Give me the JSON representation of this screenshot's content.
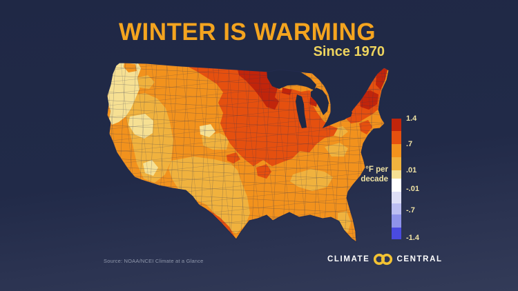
{
  "title": "WINTER IS WARMING",
  "subtitle": "Since 1970",
  "source_text": "Source: NOAA/NCEI Climate at a Glance",
  "logo": {
    "word_left": "CLIMATE",
    "word_right": "CENTRAL",
    "icon": "interlocking-rings-icon",
    "ring_color": "#f2c233"
  },
  "legend": {
    "unit_line1": "°F per",
    "unit_line2": "decade",
    "ticks": [
      {
        "label": "1.4",
        "pos_pct": 0
      },
      {
        "label": ".7",
        "pos_pct": 21
      },
      {
        "label": ".01",
        "pos_pct": 43
      },
      {
        "label": "-.01",
        "pos_pct": 58
      },
      {
        "label": "-.7",
        "pos_pct": 76
      },
      {
        "label": "-1.4",
        "pos_pct": 99
      }
    ],
    "bands": [
      {
        "name": "dark-red",
        "color": "#c1250b",
        "height_pct": 10.5
      },
      {
        "name": "red-orange",
        "color": "#e5500f",
        "height_pct": 10.5
      },
      {
        "name": "orange",
        "color": "#f2921d",
        "height_pct": 11
      },
      {
        "name": "gold",
        "color": "#f0b23e",
        "height_pct": 11
      },
      {
        "name": "pale-yellow",
        "color": "#f6e093",
        "height_pct": 6.5
      },
      {
        "name": "white",
        "color": "#ffffff",
        "height_pct": 11
      },
      {
        "name": "palest-blue",
        "color": "#dedff7",
        "height_pct": 9.5
      },
      {
        "name": "light-blue",
        "color": "#bcbef2",
        "height_pct": 9.5
      },
      {
        "name": "medium-blue",
        "color": "#8f93ea",
        "height_pct": 10.5
      },
      {
        "name": "blue",
        "color": "#4a4be0",
        "height_pct": 10
      }
    ]
  },
  "map_colors": {
    "darkred": "#c1250b",
    "red": "#e5500f",
    "orange": "#f2921d",
    "gold": "#f0b23e",
    "cream": "#f6e093",
    "water": "#1f2845",
    "division_line": "#262e52"
  },
  "background_color": "#212a48",
  "title_color": "#f4a41f",
  "subtitle_color": "#eed45e",
  "chart_data": {
    "type": "heatmap",
    "subtype": "choropleth-map",
    "title": "WINTER IS WARMING",
    "subtitle": "Since 1970",
    "region_shown": "Contiguous United States by climate division",
    "metric": "Winter temperature trend, °F per decade, since 1970",
    "legend_title": "°F per decade",
    "scale_ticks": [
      1.4,
      0.7,
      0.01,
      -0.01,
      -0.7,
      -1.4
    ],
    "scale_colors_warm_to_cool": [
      "#c1250b",
      "#e5500f",
      "#f2921d",
      "#f0b23e",
      "#f6e093",
      "#ffffff",
      "#dedff7",
      "#bcbef2",
      "#8f93ea",
      "#4a4be0"
    ],
    "regional_values": [
      {
        "region": "Northern Minnesota / Wisconsin / North Dakota arrowhead",
        "approx_value": "1.0 to 1.4",
        "color": "dark red"
      },
      {
        "region": "Maine, Adirondacks / Vermont (upstate Northeast)",
        "approx_value": "1.0 to 1.4",
        "color": "dark red"
      },
      {
        "region": "Northern Plains, Upper Midwest, Great Lakes, Ohio Valley, Michigan, New England",
        "approx_value": "0.7 to 1.0",
        "color": "red-orange"
      },
      {
        "region": "South Texas (Rio Grande Valley), Arkansas pocket",
        "approx_value": "0.7 to 1.0",
        "color": "red-orange"
      },
      {
        "region": "Interior West, Central Plains, Mid-Atlantic, Southeast, Gulf Coast, Florida",
        "approx_value": "0.35 to 0.7",
        "color": "orange"
      },
      {
        "region": "Texas, Oklahoma, eastern New Mexico, Nevada/Utah/Arizona, southern Appalachians, central Florida",
        "approx_value": "0.01 to 0.35",
        "color": "gold"
      },
      {
        "region": "Pacific Northwest coast, Sierra Nevada / western Nevada, western Arizona pocket",
        "approx_value": "near 0.01",
        "color": "pale yellow"
      }
    ],
    "note": "No climate divisions shown in white or blue (cooling) categories; entire map is in warming colors."
  }
}
